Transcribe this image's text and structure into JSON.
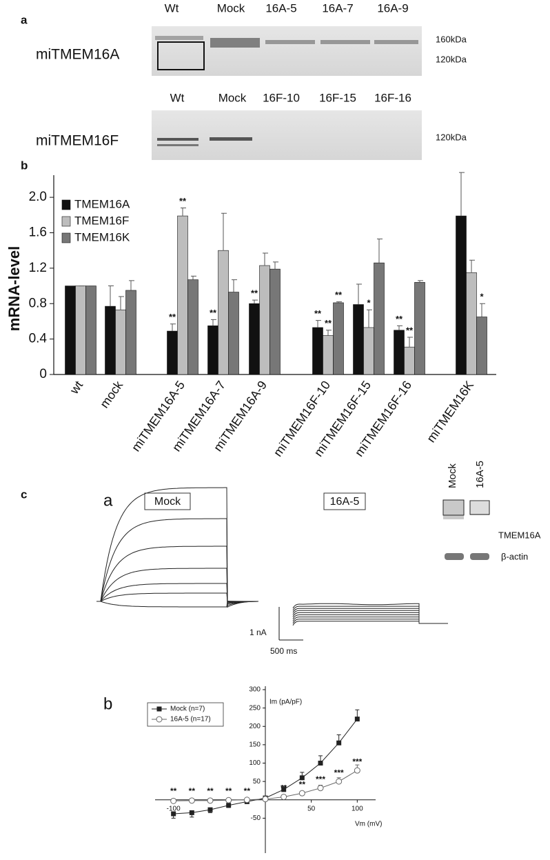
{
  "panel_a": {
    "label": "a",
    "blots": [
      {
        "protein": "miTMEM16A",
        "lanes": [
          "Wt",
          "Mock",
          "16A-5",
          "16A-7",
          "16A-9"
        ],
        "markers": [
          "160kDa",
          "120kDa"
        ]
      },
      {
        "protein": "miTMEM16F",
        "lanes": [
          "Wt",
          "Mock",
          "16F-10",
          "16F-15",
          "16F-16"
        ],
        "markers": [
          "120kDa"
        ]
      }
    ]
  },
  "panel_b": {
    "label": "b"
  },
  "panel_c": {
    "label": "c",
    "sub_a": "a",
    "sub_b": "b",
    "trace_titles": [
      "Mock",
      "16A-5"
    ],
    "scale_bar": [
      "1 nA",
      "500 ms"
    ],
    "inset": {
      "lanes": [
        "Mock",
        "16A-5"
      ],
      "bands": [
        "TMEM16A",
        "β-actin"
      ]
    }
  },
  "chart_data": [
    {
      "type": "bar",
      "y_label": "mRNA-level",
      "categories": [
        "wt",
        "mock",
        "miTMEM16A-5",
        "miTMEM16A-7",
        "miTMEM16A-9",
        "miTMEM16F-10",
        "miTMEM16F-15",
        "miTMEM16F-16",
        "miTMEM16K"
      ],
      "series": [
        {
          "name": "TMEM16A",
          "color": "#111111",
          "values": [
            1,
            0.77,
            0.49,
            0.55,
            0.8,
            0.53,
            0.79,
            0.5,
            1.79
          ],
          "errors": [
            0,
            0.23,
            0.08,
            0.07,
            0.04,
            0.08,
            0.23,
            0.05,
            0.49
          ],
          "annotations": [
            null,
            null,
            "**",
            "**",
            "**",
            "**",
            null,
            "**",
            null
          ]
        },
        {
          "name": "TMEM16F",
          "color": "#bdbdbd",
          "values": [
            1,
            0.73,
            1.79,
            1.4,
            1.23,
            0.44,
            0.53,
            0.31,
            1.15
          ],
          "errors": [
            0,
            0.15,
            0.09,
            0.42,
            0.14,
            0.06,
            0.2,
            0.11,
            0.14
          ],
          "annotations": [
            null,
            null,
            "**",
            null,
            null,
            "**",
            "*",
            "**",
            null
          ]
        },
        {
          "name": "TMEM16K",
          "color": "#777777",
          "values": [
            1,
            0.95,
            1.07,
            0.93,
            1.19,
            0.81,
            1.26,
            1.04,
            0.65
          ],
          "errors": [
            0,
            0.11,
            0.04,
            0.14,
            0.08,
            0.01,
            0.27,
            0.02,
            0.15
          ],
          "annotations": [
            null,
            null,
            null,
            null,
            null,
            "**",
            null,
            null,
            "*"
          ]
        }
      ],
      "ylim": [
        0,
        2.25
      ],
      "yticks": [
        0,
        0.4,
        0.8,
        1.2,
        1.6,
        {
          "value": 2,
          "label": "2.0"
        }
      ],
      "legend": "upper left"
    },
    {
      "type": "line",
      "x_label": "Vm (mV)",
      "y_label": "Im (pA/pF)",
      "x": [
        -100,
        -80,
        -60,
        -40,
        -20,
        0,
        20,
        40,
        60,
        80,
        100
      ],
      "series": [
        {
          "name": "Mock (n=7)",
          "color": "#222222",
          "marker": "square",
          "values": [
            -38,
            -35,
            -27,
            -15,
            -5,
            5,
            28,
            60,
            100,
            155,
            220
          ],
          "errors": [
            12,
            12,
            8,
            6,
            4,
            3,
            10,
            15,
            20,
            22,
            25
          ]
        },
        {
          "name": "16A-5 (n=17)",
          "color": "#666666",
          "marker": "circle",
          "values": [
            -3,
            -2,
            -2,
            -1,
            0,
            2,
            8,
            18,
            32,
            50,
            80
          ],
          "errors": [
            2,
            2,
            2,
            2,
            2,
            2,
            4,
            5,
            8,
            10,
            15
          ],
          "annotations": [
            "**",
            "**",
            "**",
            "**",
            "**",
            null,
            "**",
            "**",
            "***",
            "***",
            "***"
          ]
        }
      ],
      "xlim": [
        -120,
        120
      ],
      "xticks": [
        -100,
        50,
        100
      ],
      "ylim": [
        -100,
        300
      ],
      "yticks": [
        -50,
        50,
        100,
        150,
        200,
        250,
        300
      ],
      "legend": "upper left"
    }
  ]
}
